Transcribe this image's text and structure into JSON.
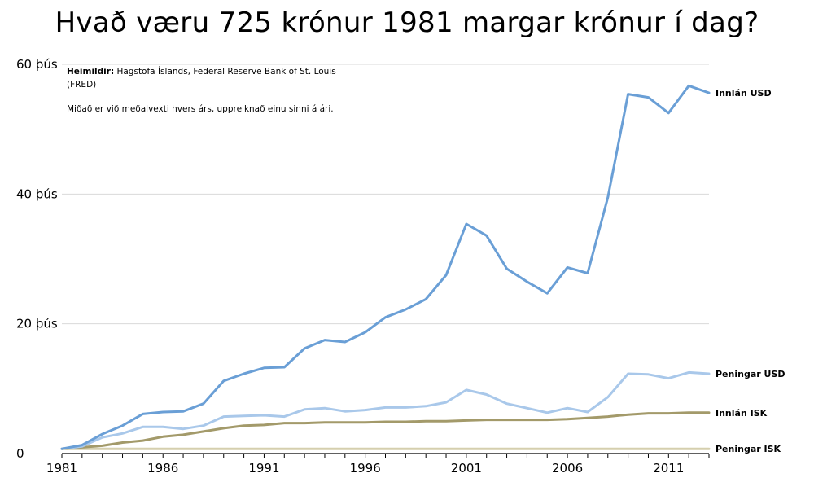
{
  "chart_data": {
    "type": "line",
    "title": "Hvað væru 725 krónur 1981 margar krónur í dag?",
    "notes": {
      "source_label": "Heimildir:",
      "source_text_1": " Hagstofa Íslands, Federal Reserve Bank of St. Louis",
      "source_text_2": "(FRED)",
      "method": "Miðað er við meðalvexti hvers árs, uppreiknað einu sinni á ári."
    },
    "x": [
      1981,
      1982,
      1983,
      1984,
      1985,
      1986,
      1987,
      1988,
      1989,
      1990,
      1991,
      1992,
      1993,
      1994,
      1995,
      1996,
      1997,
      1998,
      1999,
      2000,
      2001,
      2002,
      2003,
      2004,
      2005,
      2006,
      2007,
      2008,
      2009,
      2010,
      2011,
      2012,
      2013
    ],
    "xticks": [
      1981,
      1986,
      1991,
      1996,
      2001,
      2006,
      2011
    ],
    "xlim": [
      1981,
      2013
    ],
    "ylim": [
      0,
      60000
    ],
    "yticks": [
      {
        "value": 0,
        "label": "0"
      },
      {
        "value": 20000,
        "label": "20 þús"
      },
      {
        "value": 40000,
        "label": "40 þús"
      },
      {
        "value": 60000,
        "label": "60 þús"
      }
    ],
    "grid": true,
    "series": [
      {
        "name": "Innlán USD",
        "color": "#6a9fd6",
        "values": [
          725,
          1300,
          3000,
          4300,
          6100,
          6400,
          6500,
          7700,
          11200,
          12300,
          13200,
          13300,
          16200,
          17500,
          17200,
          18700,
          21000,
          22200,
          23800,
          27500,
          35400,
          33600,
          28500,
          26500,
          24700,
          28700,
          27800,
          39500,
          55400,
          54900,
          52500,
          56700,
          55600
        ]
      },
      {
        "name": "Peningar USD",
        "color": "#a9c8ea",
        "values": [
          725,
          1100,
          2500,
          3100,
          4100,
          4100,
          3800,
          4300,
          5700,
          5800,
          5900,
          5700,
          6800,
          7000,
          6500,
          6700,
          7100,
          7100,
          7300,
          7900,
          9800,
          9100,
          7700,
          7000,
          6300,
          7000,
          6400,
          8700,
          12300,
          12200,
          11600,
          12500,
          12300
        ]
      },
      {
        "name": "Innlán ISK",
        "color": "#a39a6a",
        "values": [
          725,
          950,
          1200,
          1700,
          2000,
          2600,
          2900,
          3400,
          3900,
          4300,
          4400,
          4700,
          4700,
          4800,
          4800,
          4800,
          4900,
          4900,
          5000,
          5000,
          5100,
          5200,
          5200,
          5200,
          5200,
          5300,
          5500,
          5700,
          6000,
          6200,
          6200,
          6300,
          6300
        ]
      },
      {
        "name": "Peningar ISK",
        "color": "#d5cfae",
        "values": [
          725,
          725,
          725,
          725,
          725,
          725,
          725,
          725,
          725,
          725,
          725,
          725,
          725,
          725,
          725,
          725,
          725,
          725,
          725,
          725,
          725,
          725,
          725,
          725,
          725,
          725,
          725,
          725,
          725,
          725,
          725,
          725,
          725
        ]
      }
    ]
  }
}
